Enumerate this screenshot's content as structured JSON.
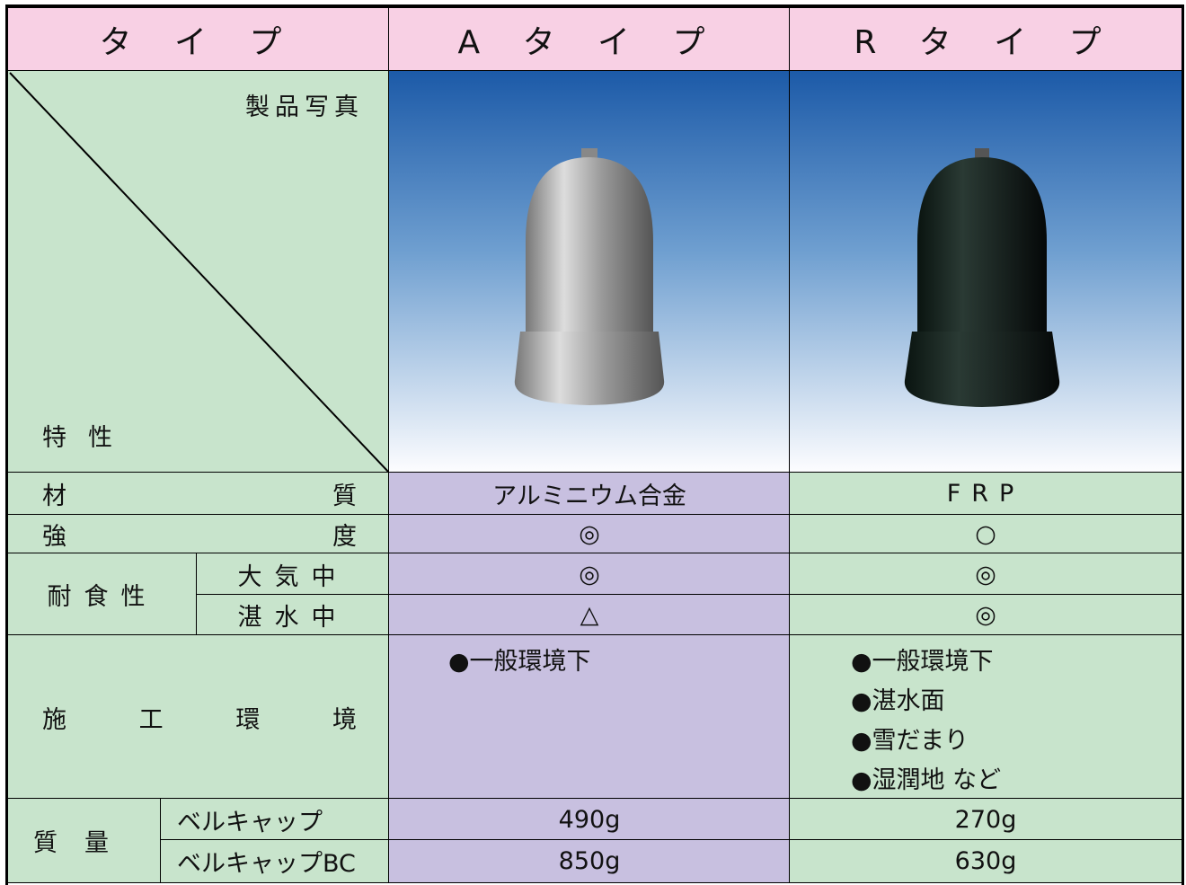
{
  "header": [
    "タ イ プ",
    "A タ イ プ",
    "R タ イ プ"
  ],
  "corner": {
    "top": "製品写真",
    "bottom": "特性"
  },
  "rows": [
    {
      "label": "材 質",
      "a": "アルミニウム合金",
      "r": "FRP"
    },
    {
      "label": "強 度",
      "a": "◎",
      "r": "○"
    }
  ],
  "corrosion": {
    "label": "耐食性",
    "sub": [
      {
        "label": "大気中",
        "a": "◎",
        "r": "◎"
      },
      {
        "label": "湛水中",
        "a": "△",
        "r": "◎"
      }
    ]
  },
  "environment": {
    "label": "施 工 環 境",
    "a": [
      "●一般環境下"
    ],
    "r": [
      "●一般環境下",
      "●湛水面",
      "●雪だまり",
      "●湿潤地 など"
    ]
  },
  "mass": {
    "label": "質量",
    "sub": [
      {
        "label": "ベルキャップ",
        "a": "490g",
        "r": "270g"
      },
      {
        "label": "ベルキャップBC",
        "a": "850g",
        "r": "630g"
      }
    ]
  }
}
